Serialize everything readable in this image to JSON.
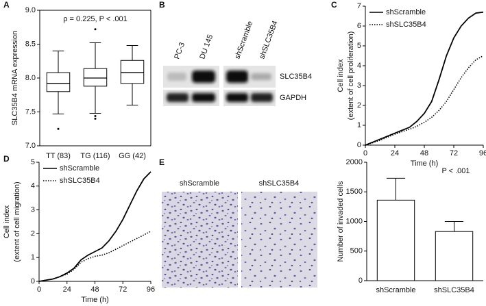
{
  "chart_data": [
    {
      "type": "box",
      "label": "A",
      "annotation": "ρ = 0.225, P < .001",
      "ylabel": "SLC35B4 mRNA expression",
      "categories": [
        "TT (83)",
        "TG (116)",
        "GG (42)"
      ],
      "boxes": [
        {
          "whislo": 7.47,
          "q1": 7.8,
          "med": 7.92,
          "q3": 8.08,
          "whishi": 8.4,
          "fliers": [
            7.25
          ]
        },
        {
          "whislo": 7.48,
          "q1": 7.88,
          "med": 8.0,
          "q3": 8.14,
          "whishi": 8.52,
          "fliers": [
            8.72,
            7.44,
            7.4
          ]
        },
        {
          "whislo": 7.6,
          "q1": 7.92,
          "med": 8.08,
          "q3": 8.26,
          "whishi": 8.48,
          "fliers": []
        }
      ],
      "ylim": [
        7.0,
        9.0
      ],
      "yticks": [
        {
          "value": 7,
          "label": "7.0"
        },
        {
          "value": 7.5,
          "label": "7.5"
        },
        {
          "value": 8,
          "label": "8.0"
        },
        {
          "value": 8.5,
          "label": "8.5"
        },
        {
          "value": 9,
          "label": "9.0"
        }
      ]
    },
    {
      "type": "line",
      "label": "C",
      "xlabel": "Time (h)",
      "ylabel": [
        "Cell index",
        "(extent of cell proliferation)"
      ],
      "x": [
        0,
        6,
        12,
        18,
        24,
        30,
        36,
        42,
        48,
        54,
        60,
        66,
        72,
        78,
        84,
        90,
        96
      ],
      "series": [
        {
          "name": "shScramble",
          "color": "#000000",
          "linestyle": "solid",
          "values": [
            0,
            0.15,
            0.3,
            0.45,
            0.6,
            0.75,
            0.9,
            1.2,
            1.6,
            2.2,
            3.3,
            4.5,
            5.4,
            6.0,
            6.4,
            6.65,
            6.7
          ]
        },
        {
          "name": "shSLC35B4",
          "color": "#000000",
          "linestyle": "dotted",
          "values": [
            0,
            0.12,
            0.25,
            0.4,
            0.55,
            0.68,
            0.8,
            0.95,
            1.15,
            1.4,
            1.75,
            2.2,
            2.8,
            3.4,
            3.9,
            4.3,
            4.5
          ]
        }
      ],
      "xlim": [
        0,
        96
      ],
      "xticks": [
        0,
        24,
        48,
        72,
        96
      ],
      "ylim": [
        0,
        7
      ],
      "yticks": [
        0,
        1,
        2,
        3,
        4,
        5,
        6,
        7
      ],
      "legend": "upper left"
    },
    {
      "type": "line",
      "label": "D",
      "xlabel": "Time (h)",
      "ylabel": [
        "Cell index",
        "(extent of cell migration)"
      ],
      "x": [
        0,
        6,
        12,
        18,
        24,
        30,
        36,
        42,
        48,
        54,
        60,
        66,
        72,
        78,
        84,
        90,
        96
      ],
      "series": [
        {
          "name": "shScramble",
          "color": "#000000",
          "linestyle": "solid",
          "values": [
            0,
            0.05,
            0.1,
            0.2,
            0.35,
            0.55,
            0.9,
            1.1,
            1.25,
            1.4,
            1.7,
            2.1,
            2.6,
            3.2,
            3.8,
            4.3,
            4.6
          ]
        },
        {
          "name": "shSLC35B4",
          "color": "#000000",
          "linestyle": "dotted",
          "values": [
            0,
            0.05,
            0.1,
            0.2,
            0.3,
            0.5,
            0.8,
            0.95,
            1.05,
            1.1,
            1.2,
            1.35,
            1.5,
            1.65,
            1.8,
            1.95,
            2.1
          ]
        }
      ],
      "xlim": [
        0,
        96
      ],
      "xticks": [
        0,
        24,
        48,
        72,
        96
      ],
      "ylim": [
        0,
        5
      ],
      "yticks": [
        0,
        1,
        2,
        3,
        4,
        5
      ],
      "legend": "upper left"
    },
    {
      "type": "bar",
      "annotation": "P < .001",
      "ylabel": "Number of invaded cells",
      "categories": [
        "shScramble",
        "shSLC35B4"
      ],
      "values": [
        1360,
        830
      ],
      "errors": [
        370,
        170
      ],
      "color": "#ffffff",
      "ylim": [
        0,
        2000
      ],
      "yticks": [
        0,
        500,
        1000,
        1500,
        2000
      ]
    }
  ],
  "blot": {
    "label": "B",
    "lanes": [
      "PC-3",
      "DU 145",
      "shScramble",
      "shSLC35B4"
    ],
    "rows": [
      "SLC35B4",
      "GAPDH"
    ]
  },
  "micrographs": {
    "label": "E",
    "titles": [
      "shScramble",
      "shSLC35B4"
    ]
  }
}
